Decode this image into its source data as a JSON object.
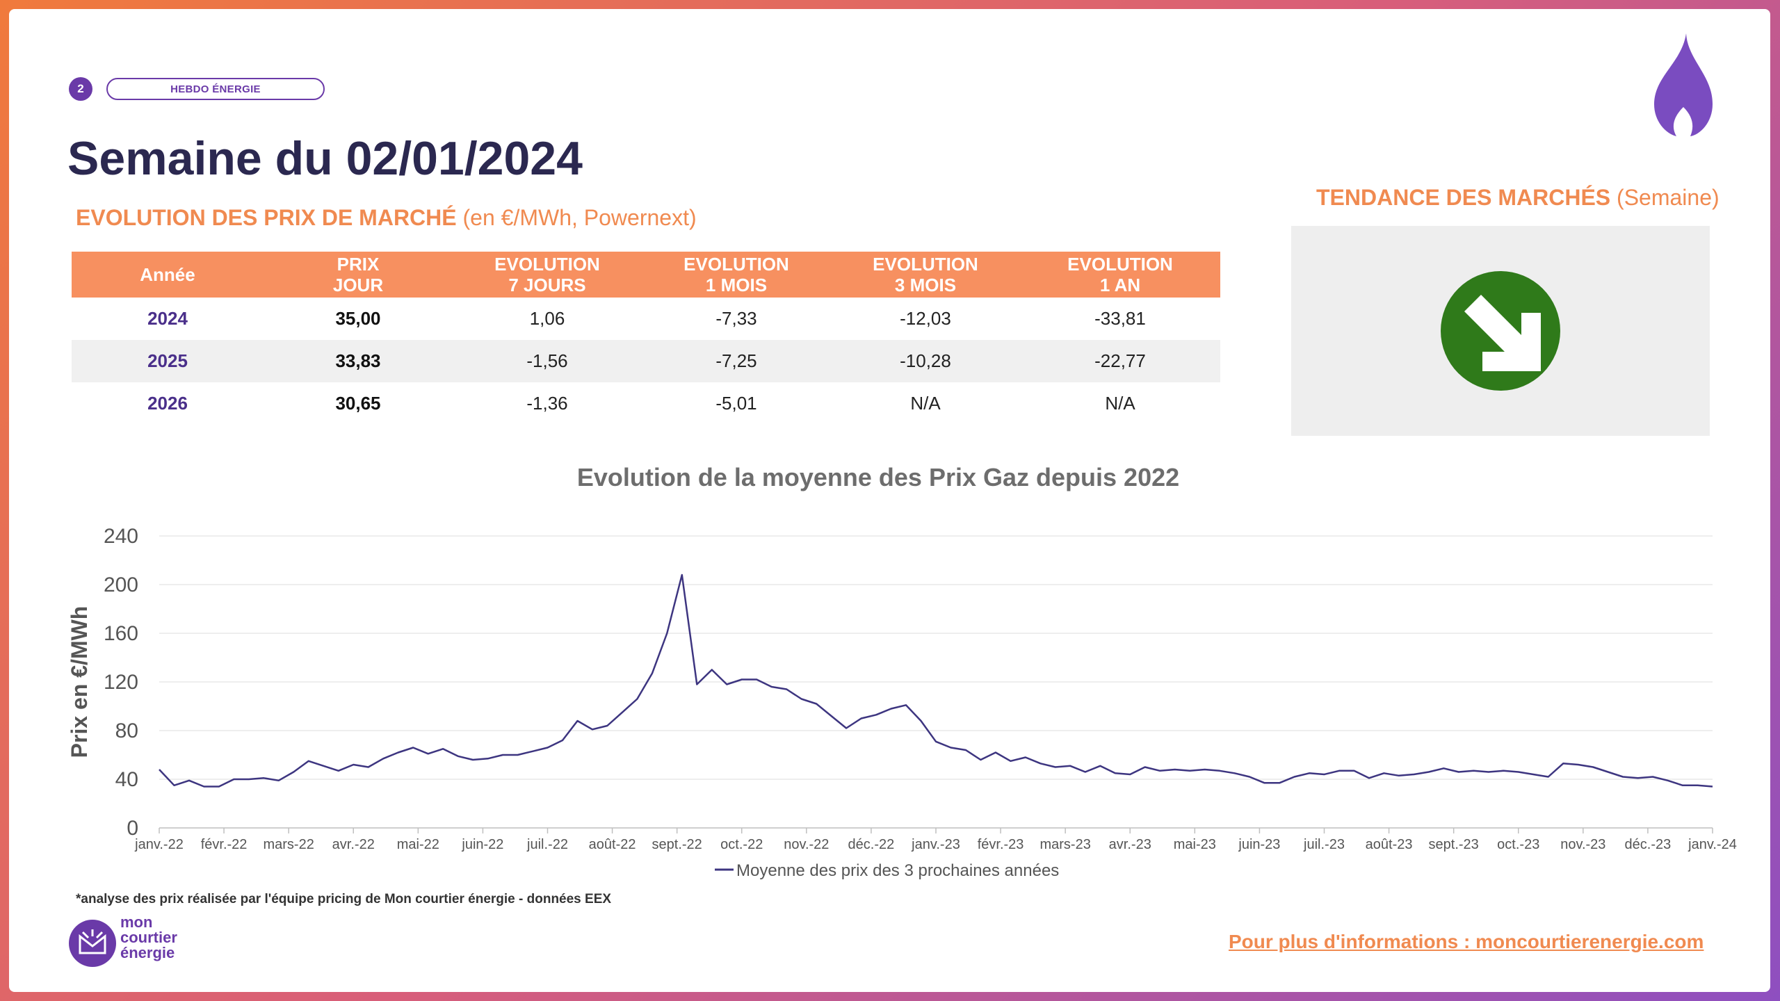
{
  "header": {
    "page_number": "2",
    "badge": "HEBDO ÉNERGIE",
    "title": "Semaine du 02/01/2024"
  },
  "section": {
    "title_bold": "EVOLUTION DES PRIX DE MARCHÉ",
    "title_light": "(en €/MWh, Powernext)"
  },
  "trend": {
    "title_bold": "TENDANCE DES MARCHÉS",
    "title_light": "(Semaine)",
    "direction": "down",
    "icon": "arrow-down-right-icon",
    "color": "#2f7a1a"
  },
  "table": {
    "headers": [
      [
        "Année"
      ],
      [
        "PRIX",
        "JOUR"
      ],
      [
        "EVOLUTION",
        "7 JOURS"
      ],
      [
        "EVOLUTION",
        "1 MOIS"
      ],
      [
        "EVOLUTION",
        "3 MOIS"
      ],
      [
        "EVOLUTION",
        "1 AN"
      ]
    ],
    "rows": [
      [
        "2024",
        "35,00",
        "1,06",
        "-7,33",
        "-12,03",
        "-33,81"
      ],
      [
        "2025",
        "33,83",
        "-1,56",
        "-7,25",
        "-10,28",
        "-22,77"
      ],
      [
        "2026",
        "30,65",
        "-1,36",
        "-5,01",
        "N/A",
        "N/A"
      ]
    ]
  },
  "chart_data": {
    "type": "line",
    "title": "Evolution de la moyenne des Prix Gaz depuis 2022",
    "ylabel": "Prix en €/MWh",
    "xlabel": "",
    "ylim": [
      0,
      240
    ],
    "yticks": [
      0,
      40,
      80,
      120,
      160,
      200,
      240
    ],
    "grid": true,
    "legend_placement": "bottom",
    "series_color": "#3d3580",
    "x_tick_labels": [
      "janv.-22",
      "févr.-22",
      "mars-22",
      "avr.-22",
      "mai-22",
      "juin-22",
      "juil.-22",
      "août-22",
      "sept.-22",
      "oct.-22",
      "nov.-22",
      "déc.-22",
      "janv.-23",
      "févr.-23",
      "mars-23",
      "avr.-23",
      "mai-23",
      "juin-23",
      "juil.-23",
      "août-23",
      "sept.-23",
      "oct.-23",
      "nov.-23",
      "déc.-23",
      "janv.-24"
    ],
    "series": [
      {
        "name": "Moyenne des prix des 3 prochaines années",
        "values": [
          48,
          35,
          39,
          34,
          34,
          40,
          40,
          41,
          39,
          46,
          55,
          51,
          47,
          52,
          50,
          57,
          62,
          66,
          61,
          65,
          59,
          56,
          57,
          60,
          60,
          63,
          66,
          72,
          88,
          81,
          84,
          95,
          106,
          127,
          160,
          208,
          118,
          130,
          118,
          122,
          122,
          116,
          114,
          106,
          102,
          92,
          82,
          90,
          93,
          98,
          101,
          88,
          71,
          66,
          64,
          56,
          62,
          55,
          58,
          53,
          50,
          51,
          46,
          51,
          45,
          44,
          50,
          47,
          48,
          47,
          48,
          47,
          45,
          42,
          37,
          37,
          42,
          45,
          44,
          47,
          47,
          41,
          45,
          43,
          44,
          46,
          49,
          46,
          47,
          46,
          47,
          46,
          44,
          42,
          53,
          52,
          50,
          46,
          42,
          41,
          42,
          39,
          35,
          35,
          34
        ]
      }
    ]
  },
  "footer": {
    "footnote": "*analyse des prix réalisée par l'équipe pricing de Mon courtier énergie -  données EEX",
    "logo_lines": [
      "mon",
      "courtier",
      "énergie"
    ],
    "link": "Pour plus d'informations : moncourtierenergie.com"
  }
}
